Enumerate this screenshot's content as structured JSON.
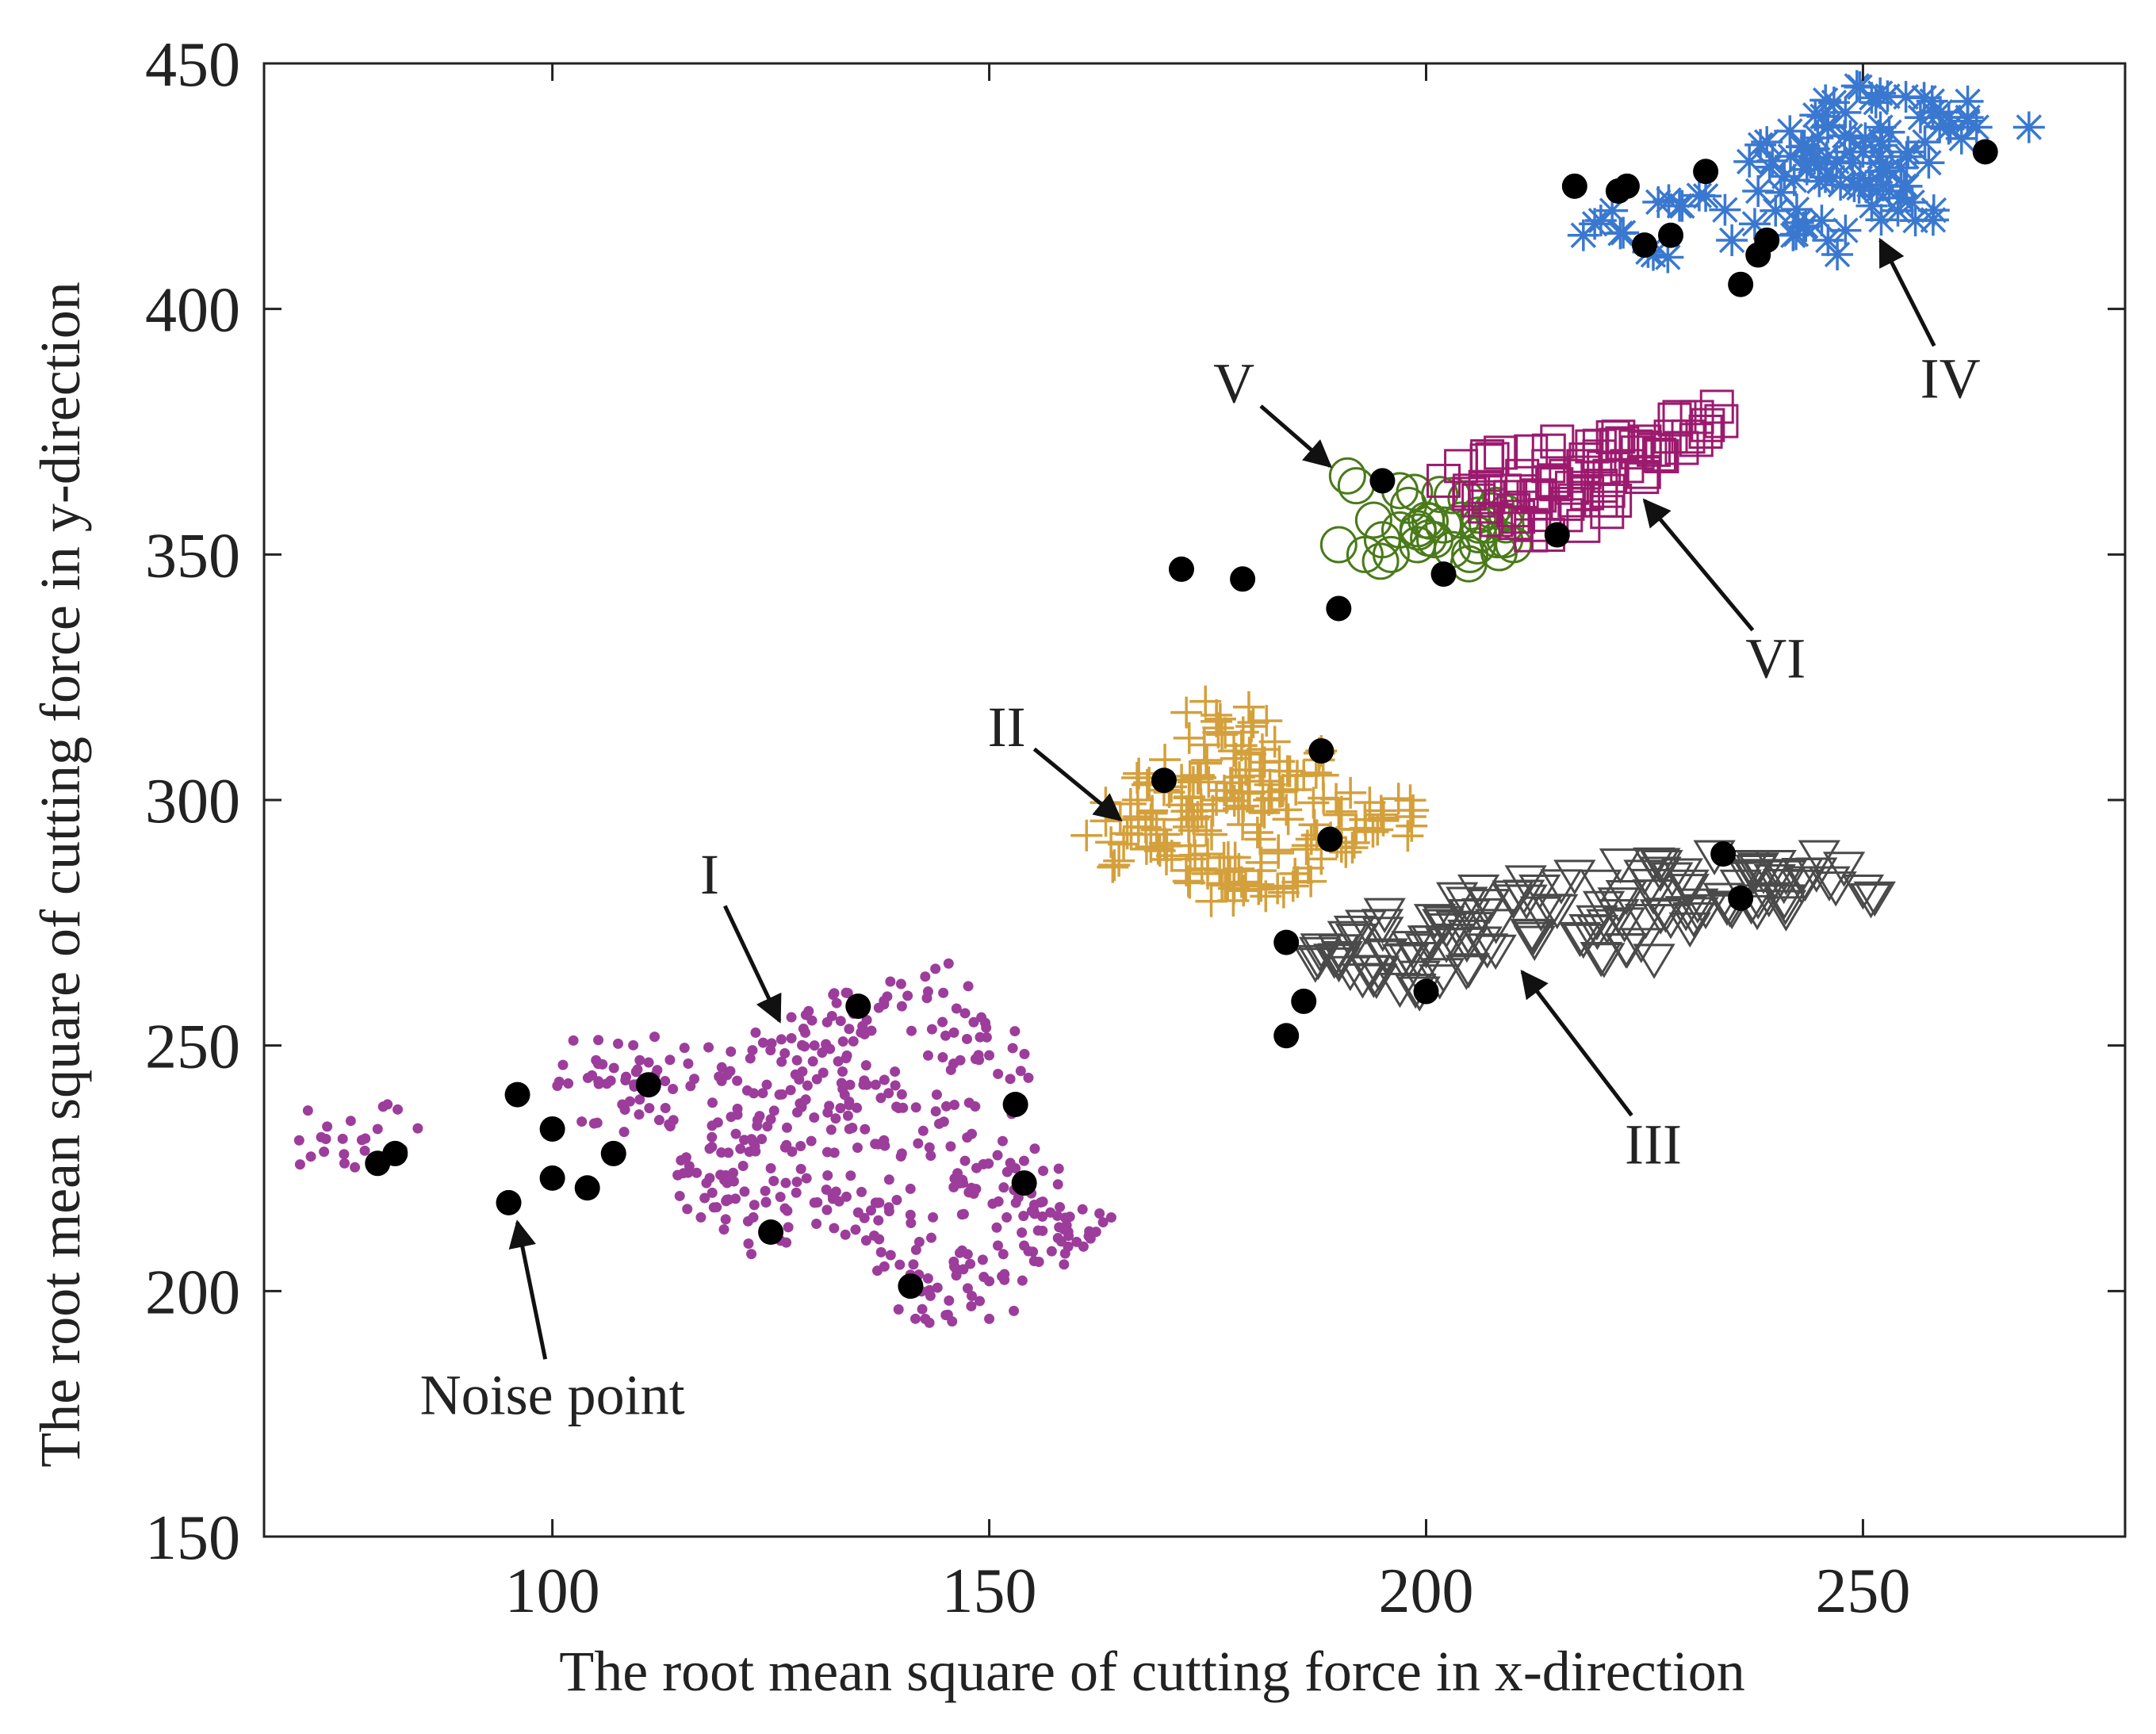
{
  "chart_data": {
    "type": "scatter",
    "title": "",
    "xlabel": "The root mean square of cutting force in x-direction",
    "ylabel": "The root mean square of cutting force in y-direction",
    "xlim": [
      67,
      280
    ],
    "ylim": [
      150,
      450
    ],
    "xticks": [
      100,
      150,
      200,
      250
    ],
    "yticks": [
      150,
      200,
      250,
      300,
      350,
      400,
      450
    ],
    "colors": {
      "I": "#9c3d9c",
      "II": "#d4a03c",
      "III": "#4a4a4a",
      "IV": "#3a78d0",
      "V": "#4a7a1a",
      "VI": "#9c1a6e",
      "noise": "#000000"
    },
    "series": [
      {
        "name": "I",
        "marker": "dot",
        "center": [
          135,
          230
        ],
        "count": 500,
        "points": [
          [
            76,
            231
          ],
          [
            80,
            233
          ],
          [
            110,
            247
          ],
          [
            112,
            245
          ],
          [
            105,
            247
          ],
          [
            108,
            238
          ],
          [
            110,
            239
          ],
          [
            115,
            224
          ],
          [
            118,
            223
          ],
          [
            120,
            222
          ],
          [
            130,
            250
          ],
          [
            128,
            247
          ],
          [
            133,
            255
          ],
          [
            140,
            258
          ],
          [
            145,
            252
          ],
          [
            150,
            248
          ],
          [
            125,
            235
          ],
          [
            129,
            239
          ],
          [
            136,
            242
          ],
          [
            138,
            243
          ],
          [
            123,
            215
          ],
          [
            127,
            213
          ],
          [
            130,
            218
          ],
          [
            135,
            216
          ],
          [
            142,
            210
          ],
          [
            146,
            205
          ],
          [
            150,
            202
          ],
          [
            155,
            208
          ],
          [
            160,
            210
          ],
          [
            158,
            213
          ],
          [
            152,
            215
          ],
          [
            147,
            222
          ],
          [
            140,
            228
          ],
          [
            134,
            233
          ],
          [
            126,
            240
          ],
          [
            121,
            232
          ],
          [
            118,
            229
          ],
          [
            144,
            240
          ],
          [
            148,
            232
          ],
          [
            153,
            225
          ],
          [
            157,
            216
          ],
          [
            143,
            200
          ],
          [
            148,
            199
          ],
          [
            138,
            205
          ],
          [
            137,
            218
          ],
          [
            125,
            225
          ],
          [
            120,
            244
          ],
          [
            132,
            256
          ],
          [
            143,
            261
          ],
          [
            117,
            215
          ]
        ]
      },
      {
        "name": "II",
        "marker": "plus",
        "center": [
          178,
          297
        ],
        "count": 200,
        "points": [
          [
            165,
            296
          ],
          [
            170,
            302
          ],
          [
            173,
            288
          ],
          [
            176,
            300
          ],
          [
            178,
            310
          ],
          [
            181,
            292
          ],
          [
            184,
            298
          ],
          [
            186,
            305
          ],
          [
            188,
            288
          ],
          [
            190,
            297
          ],
          [
            193,
            296
          ],
          [
            195,
            297
          ],
          [
            192,
            294
          ],
          [
            176,
            316
          ],
          [
            180,
            315
          ],
          [
            175,
            285
          ],
          [
            178,
            282
          ],
          [
            183,
            282
          ],
          [
            185,
            285
          ],
          [
            172,
            296
          ],
          [
            168,
            290
          ],
          [
            167,
            300
          ],
          [
            174,
            305
          ],
          [
            179,
            295
          ],
          [
            182,
            300
          ],
          [
            188,
            310
          ],
          [
            170,
            293
          ],
          [
            175,
            289
          ],
          [
            181,
            306
          ],
          [
            177,
            283
          ]
        ]
      },
      {
        "name": "III",
        "marker": "triangle-down",
        "center": [
          215,
          277
        ],
        "count": 150,
        "points": [
          [
            190,
            268
          ],
          [
            192,
            272
          ],
          [
            195,
            275
          ],
          [
            197,
            262
          ],
          [
            200,
            270
          ],
          [
            203,
            272
          ],
          [
            205,
            277
          ],
          [
            208,
            275
          ],
          [
            210,
            280
          ],
          [
            213,
            282
          ],
          [
            215,
            278
          ],
          [
            217,
            285
          ],
          [
            220,
            283
          ],
          [
            222,
            277
          ],
          [
            225,
            285
          ],
          [
            227,
            287
          ],
          [
            230,
            283
          ],
          [
            233,
            289
          ],
          [
            235,
            278
          ],
          [
            237,
            287
          ],
          [
            240,
            287
          ],
          [
            243,
            283
          ],
          [
            245,
            289
          ],
          [
            250,
            282
          ],
          [
            198,
            268
          ],
          [
            202,
            265
          ],
          [
            207,
            270
          ],
          [
            212,
            273
          ],
          [
            218,
            272
          ],
          [
            223,
            270
          ],
          [
            228,
            276
          ],
          [
            232,
            278
          ],
          [
            238,
            280
          ],
          [
            188,
            270
          ],
          [
            194,
            264
          ],
          [
            201,
            276
          ],
          [
            206,
            282
          ],
          [
            226,
            281
          ],
          [
            236,
            283
          ],
          [
            241,
            280
          ]
        ]
      },
      {
        "name": "IV",
        "marker": "asterisk",
        "center": [
          245,
          430
        ],
        "count": 120,
        "points": [
          [
            218,
            415
          ],
          [
            220,
            418
          ],
          [
            226,
            411
          ],
          [
            229,
            421
          ],
          [
            232,
            423
          ],
          [
            235,
            414
          ],
          [
            238,
            424
          ],
          [
            240,
            420
          ],
          [
            241,
            427
          ],
          [
            243,
            433
          ],
          [
            245,
            426
          ],
          [
            246,
            437
          ],
          [
            248,
            440
          ],
          [
            250,
            432
          ],
          [
            252,
            437
          ],
          [
            253,
            424
          ],
          [
            255,
            431
          ],
          [
            257,
            443
          ],
          [
            258,
            440
          ],
          [
            260,
            437
          ],
          [
            263,
            437
          ],
          [
            269,
            437
          ],
          [
            242,
            415
          ],
          [
            246,
            414
          ],
          [
            249,
            425
          ],
          [
            251,
            421
          ],
          [
            254,
            420
          ],
          [
            256,
            418
          ],
          [
            244,
            430
          ],
          [
            247,
            430
          ],
          [
            252,
            428
          ],
          [
            255,
            425
          ],
          [
            237,
            430
          ],
          [
            239,
            434
          ],
          [
            253,
            436
          ],
          [
            248,
            416
          ],
          [
            251,
            443
          ],
          [
            262,
            439
          ]
        ]
      },
      {
        "name": "V",
        "marker": "circle",
        "center": [
          200,
          355
        ],
        "count": 40,
        "points": [
          [
            190,
            352
          ],
          [
            191,
            366
          ],
          [
            192,
            364
          ],
          [
            193,
            350
          ],
          [
            195,
            353
          ],
          [
            196,
            350
          ],
          [
            197,
            355
          ],
          [
            198,
            360
          ],
          [
            199,
            352
          ],
          [
            200,
            357
          ],
          [
            201,
            353
          ],
          [
            202,
            356
          ],
          [
            203,
            351
          ],
          [
            204,
            357
          ],
          [
            205,
            350
          ],
          [
            206,
            354
          ],
          [
            207,
            356
          ],
          [
            208,
            360
          ],
          [
            209,
            353
          ],
          [
            210,
            352
          ],
          [
            197,
            363
          ],
          [
            203,
            362
          ],
          [
            206,
            358
          ],
          [
            194,
            357
          ]
        ]
      },
      {
        "name": "VI",
        "marker": "square",
        "center": [
          213,
          365
        ],
        "count": 80,
        "points": [
          [
            202,
            365
          ],
          [
            204,
            368
          ],
          [
            206,
            361
          ],
          [
            207,
            370
          ],
          [
            209,
            363
          ],
          [
            210,
            359
          ],
          [
            211,
            366
          ],
          [
            212,
            371
          ],
          [
            213,
            362
          ],
          [
            214,
            368
          ],
          [
            215,
            373
          ],
          [
            216,
            366
          ],
          [
            217,
            361
          ],
          [
            218,
            368
          ],
          [
            219,
            372
          ],
          [
            220,
            364
          ],
          [
            221,
            366
          ],
          [
            222,
            374
          ],
          [
            223,
            368
          ],
          [
            225,
            373
          ],
          [
            227,
            370
          ],
          [
            229,
            378
          ],
          [
            230,
            374
          ],
          [
            231,
            378
          ],
          [
            232,
            375
          ],
          [
            205,
            363
          ],
          [
            208,
            357
          ],
          [
            212,
            356
          ],
          [
            216,
            358
          ],
          [
            220,
            361
          ],
          [
            224,
            372
          ],
          [
            228,
            374
          ]
        ]
      },
      {
        "name": "Noise",
        "marker": "filled-circle",
        "count": 40,
        "points": [
          [
            80,
            226
          ],
          [
            82,
            228
          ],
          [
            96,
            240
          ],
          [
            100,
            233
          ],
          [
            100,
            223
          ],
          [
            104,
            221
          ],
          [
            107,
            228
          ],
          [
            111,
            242
          ],
          [
            95,
            218
          ],
          [
            125,
            212
          ],
          [
            135,
            258
          ],
          [
            141,
            201
          ],
          [
            153,
            238
          ],
          [
            154,
            222
          ],
          [
            170,
            304
          ],
          [
            172,
            347
          ],
          [
            179,
            345
          ],
          [
            188,
            310
          ],
          [
            189,
            292
          ],
          [
            184,
            271
          ],
          [
            186,
            259
          ],
          [
            184,
            252
          ],
          [
            190,
            339
          ],
          [
            195,
            365
          ],
          [
            200,
            261
          ],
          [
            202,
            346
          ],
          [
            215,
            354
          ],
          [
            217,
            425
          ],
          [
            222,
            424
          ],
          [
            223,
            425
          ],
          [
            225,
            413
          ],
          [
            228,
            415
          ],
          [
            232,
            428
          ],
          [
            236,
            405
          ],
          [
            238,
            411
          ],
          [
            239,
            414
          ],
          [
            234,
            289
          ],
          [
            236,
            280
          ],
          [
            264,
            432
          ]
        ]
      }
    ],
    "annotations": [
      {
        "label": "I",
        "text_at": [
          118,
          285
        ],
        "arrow_to": [
          126,
          255
        ]
      },
      {
        "label": "II",
        "text_at": [
          152,
          315
        ],
        "arrow_to": [
          165,
          296
        ]
      },
      {
        "label": "III",
        "text_at": [
          226,
          230
        ],
        "arrow_to": [
          211,
          265
        ]
      },
      {
        "label": "IV",
        "text_at": [
          260,
          386
        ],
        "arrow_to": [
          252,
          414
        ]
      },
      {
        "label": "V",
        "text_at": [
          178,
          385
        ],
        "arrow_to": [
          189,
          368
        ]
      },
      {
        "label": "VI",
        "text_at": [
          240,
          329
        ],
        "arrow_to": [
          225,
          361
        ]
      },
      {
        "label": "Noise point",
        "text_at": [
          100,
          179
        ],
        "arrow_to": [
          96,
          214
        ]
      }
    ]
  }
}
